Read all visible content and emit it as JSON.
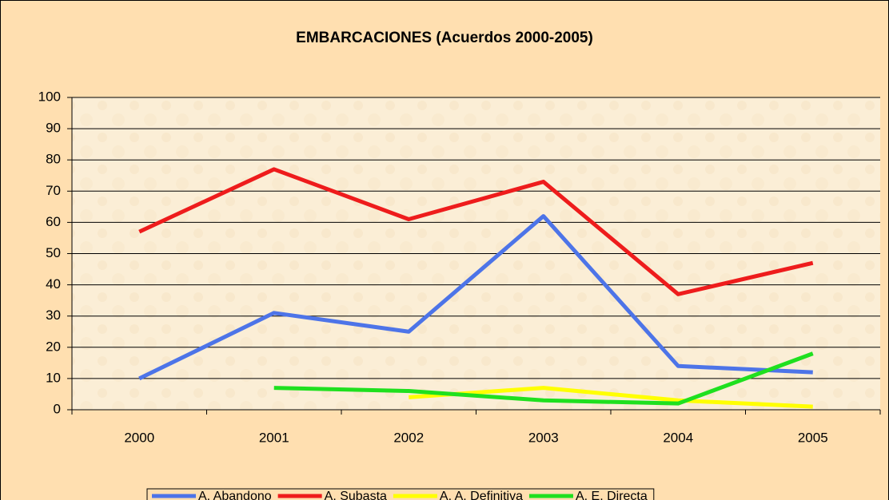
{
  "chart_data": {
    "type": "line",
    "title": "EMBARCACIONES (Acuerdos 2000-2005)",
    "categories": [
      "2000",
      "2001",
      "2002",
      "2003",
      "2004",
      "2005"
    ],
    "series": [
      {
        "name": "A. Abandono",
        "color": "#4d74e8",
        "values": [
          10,
          31,
          25,
          62,
          14,
          12
        ]
      },
      {
        "name": "A. Subasta",
        "color": "#ee1c1c",
        "values": [
          57,
          77,
          61,
          73,
          37,
          47
        ]
      },
      {
        "name": "A. A. Definitiva",
        "color": "#ffff00",
        "values": [
          null,
          null,
          4,
          7,
          3,
          1
        ]
      },
      {
        "name": "A. E. Directa",
        "color": "#1fe01f",
        "values": [
          null,
          7,
          6,
          3,
          2,
          18
        ]
      }
    ],
    "ylim": [
      0,
      100
    ],
    "yticks": [
      0,
      10,
      20,
      30,
      40,
      50,
      60,
      70,
      80,
      90,
      100
    ],
    "grid": true,
    "legend": "bottom"
  }
}
